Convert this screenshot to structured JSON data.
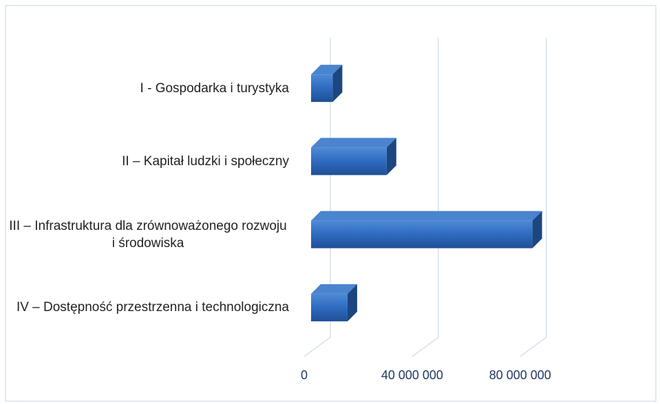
{
  "chart_data": {
    "type": "bar3d_horizontal",
    "categories": [
      "I - Gospodarka i turystyka",
      "II – Kapitał ludzki i społeczny",
      "III – Infrastruktura dla zrównoważonego rozwoju i środowiska",
      "IV – Dostępność przestrzenna i technologiczna"
    ],
    "values": [
      8000000,
      28000000,
      82000000,
      13500000
    ],
    "color": "#2e6bbf",
    "xlim": [
      0,
      90000000
    ],
    "xticks": [
      0,
      {
        "value": 40000000,
        "label": "40 000 000"
      },
      {
        "value": 80000000,
        "label": "80 000 000"
      }
    ],
    "grid": true
  }
}
